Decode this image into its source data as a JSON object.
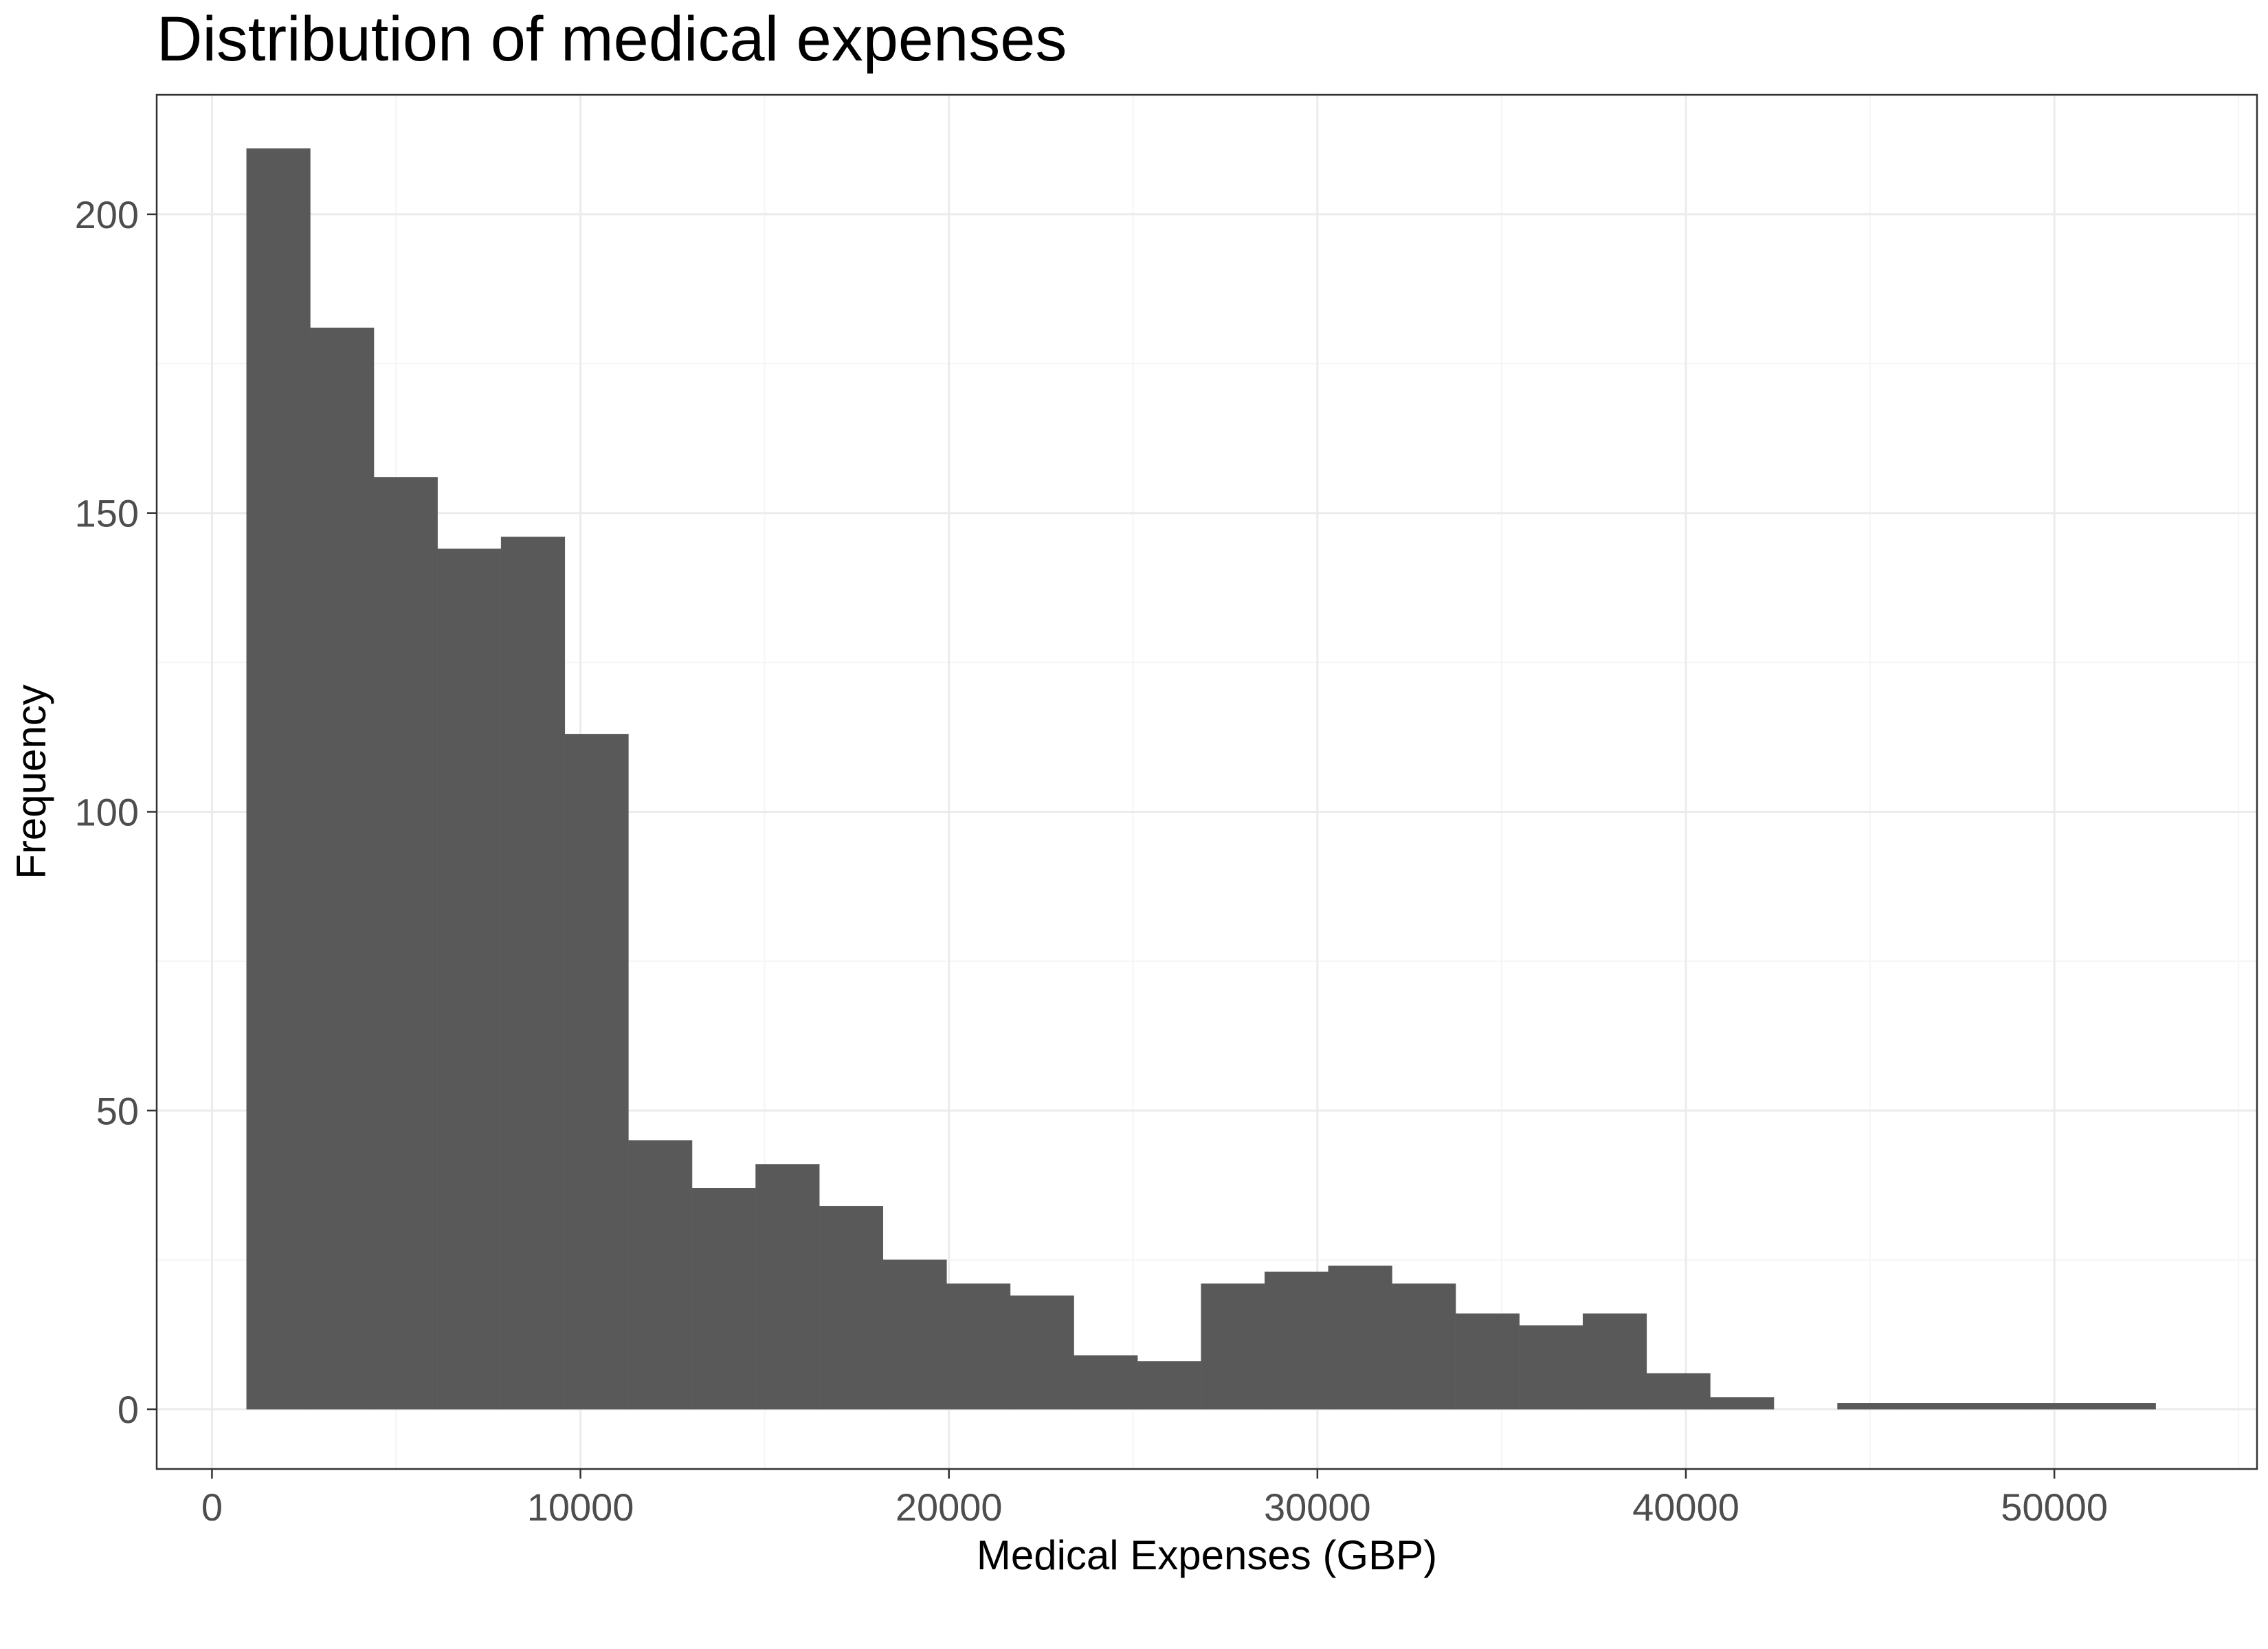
{
  "colors": {
    "bar_fill": "#595959",
    "panel_border": "#333333",
    "grid_major": "#ebebeb",
    "grid_minor": "#f5f5f5",
    "tick_text": "#4d4d4d",
    "title_text": "#000000"
  },
  "chart_data": {
    "type": "bar",
    "title": "Distribution of medical expenses",
    "xlabel": "Medical Expenses (GBP)",
    "ylabel": "Frequency",
    "xlim": [
      -1500,
      55500
    ],
    "ylim": [
      -10,
      220
    ],
    "x_ticks": [
      0,
      10000,
      20000,
      30000,
      40000,
      50000
    ],
    "x_tick_labels": [
      "0",
      "10000",
      "20000",
      "30000",
      "40000",
      "50000"
    ],
    "y_ticks": [
      0,
      50,
      100,
      150,
      200
    ],
    "y_tick_labels": [
      "0",
      "50",
      "100",
      "150",
      "200"
    ],
    "grid": true,
    "bin_width": 1727,
    "bins": [
      {
        "start": 940,
        "end": 2667,
        "count": 211
      },
      {
        "start": 2667,
        "end": 4394,
        "count": 181
      },
      {
        "start": 4394,
        "end": 6121,
        "count": 156
      },
      {
        "start": 6121,
        "end": 7848,
        "count": 144
      },
      {
        "start": 7848,
        "end": 9575,
        "count": 146
      },
      {
        "start": 9575,
        "end": 11302,
        "count": 113
      },
      {
        "start": 11302,
        "end": 13029,
        "count": 45
      },
      {
        "start": 13029,
        "end": 14756,
        "count": 37
      },
      {
        "start": 14756,
        "end": 16483,
        "count": 41
      },
      {
        "start": 16483,
        "end": 18210,
        "count": 34
      },
      {
        "start": 18210,
        "end": 19937,
        "count": 25
      },
      {
        "start": 19937,
        "end": 21664,
        "count": 21
      },
      {
        "start": 21664,
        "end": 23391,
        "count": 19
      },
      {
        "start": 23391,
        "end": 25118,
        "count": 9
      },
      {
        "start": 25118,
        "end": 26845,
        "count": 8
      },
      {
        "start": 26845,
        "end": 28572,
        "count": 21
      },
      {
        "start": 28572,
        "end": 30299,
        "count": 23
      },
      {
        "start": 30299,
        "end": 32026,
        "count": 24
      },
      {
        "start": 32026,
        "end": 33753,
        "count": 21
      },
      {
        "start": 33753,
        "end": 35480,
        "count": 16
      },
      {
        "start": 35480,
        "end": 37207,
        "count": 14
      },
      {
        "start": 37207,
        "end": 38934,
        "count": 16
      },
      {
        "start": 38934,
        "end": 40661,
        "count": 6
      },
      {
        "start": 40661,
        "end": 42388,
        "count": 2
      },
      {
        "start": 42388,
        "end": 44115,
        "count": 0
      },
      {
        "start": 44115,
        "end": 45842,
        "count": 1
      },
      {
        "start": 45842,
        "end": 47569,
        "count": 1
      },
      {
        "start": 47569,
        "end": 49296,
        "count": 1
      },
      {
        "start": 49296,
        "end": 51023,
        "count": 1
      },
      {
        "start": 51023,
        "end": 52750,
        "count": 1
      }
    ]
  }
}
